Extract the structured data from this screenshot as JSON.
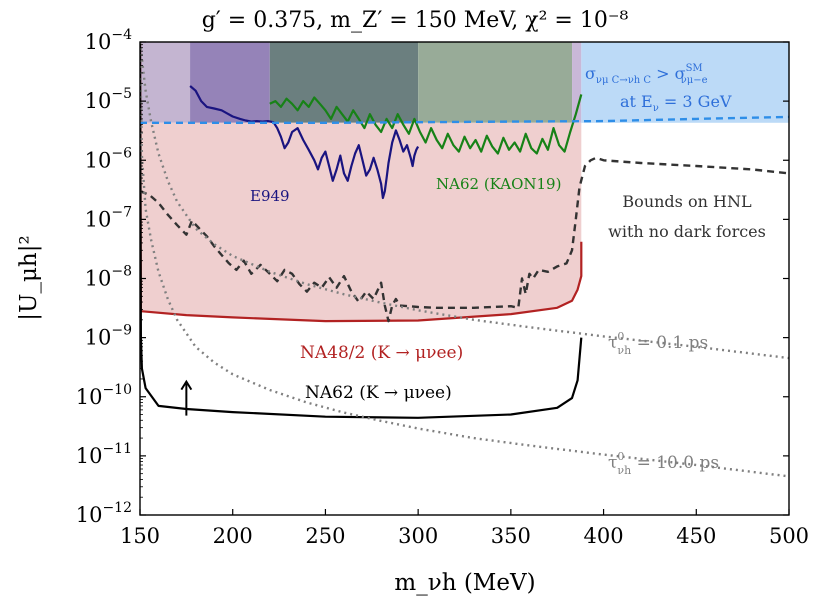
{
  "chart_data": {
    "type": "line",
    "title": "g′ = 0.375,    m_Z′ = 150 MeV,    χ² = 10⁻⁸",
    "xlabel": "m_νh (MeV)",
    "ylabel": "|U_μh|²",
    "xscale": "linear",
    "yscale": "log",
    "xlim": [
      150,
      500
    ],
    "ylim": [
      1e-12,
      0.0001
    ],
    "xticks": [
      150,
      200,
      250,
      300,
      350,
      400,
      450,
      500
    ],
    "yticks": [
      {
        "value": 1e-12,
        "base": "10",
        "exp": "−12"
      },
      {
        "value": 1e-11,
        "base": "10",
        "exp": "−11"
      },
      {
        "value": 1e-10,
        "base": "10",
        "exp": "−10"
      },
      {
        "value": 1e-09,
        "base": "10",
        "exp": "−9"
      },
      {
        "value": 1e-08,
        "base": "10",
        "exp": "−8"
      },
      {
        "value": 1e-07,
        "base": "10",
        "exp": "−7"
      },
      {
        "value": 1e-06,
        "base": "10",
        "exp": "−6"
      },
      {
        "value": 1e-05,
        "base": "10",
        "exp": "−5"
      },
      {
        "value": 0.0001,
        "base": "10",
        "exp": "−4"
      }
    ],
    "shaded_regions": [
      {
        "name": "band-lavender",
        "x": [
          150,
          177
        ],
        "color": "#c4b5d1"
      },
      {
        "name": "band-purple",
        "x": [
          177,
          220
        ],
        "color": "#9583b8"
      },
      {
        "name": "band-slate",
        "x": [
          220,
          300
        ],
        "color": "#6b7f7f"
      },
      {
        "name": "band-sage",
        "x": [
          300,
          383
        ],
        "color": "#98ab98"
      },
      {
        "name": "band-lilac",
        "x": [
          383,
          388
        ],
        "color": "#c9b8d8"
      },
      {
        "name": "band-sky",
        "x": [
          388,
          500
        ],
        "color": "#bcdaf7"
      }
    ],
    "series": [
      {
        "name": "NA48/2 (K → μνee)",
        "color": "#b22222",
        "style": "solid",
        "fill": "#efcfcf",
        "x": [
          150,
          150.5,
          175,
          200,
          250,
          300,
          350,
          375,
          383,
          386,
          388,
          388
        ],
        "y": [
          0.0001,
          2.8e-09,
          2.4e-09,
          2.2e-09,
          1.9e-09,
          1.95e-09,
          2.5e-09,
          3.2e-09,
          4.2e-09,
          6.5e-09,
          1.1e-08,
          4.2e-08
        ]
      },
      {
        "name": "NA62 (K → μνee)",
        "color": "#000000",
        "style": "solid",
        "x": [
          150,
          150.5,
          151,
          153,
          160,
          175,
          200,
          250,
          300,
          350,
          375,
          383,
          386,
          388
        ],
        "y": [
          0.0001,
          1e-09,
          3e-10,
          1.4e-10,
          7e-11,
          6.2e-11,
          5.5e-11,
          4.6e-11,
          4.4e-11,
          5e-11,
          6.5e-11,
          9.5e-11,
          1.9e-10,
          1e-09
        ]
      },
      {
        "name": "E949",
        "color": "#1a1480",
        "style": "solid",
        "x": [
          177,
          180,
          183,
          186,
          190,
          194,
          197,
          200,
          204,
          207,
          210,
          213,
          216,
          219,
          222,
          224,
          226,
          228,
          230,
          232,
          235,
          238,
          241,
          244,
          246,
          248,
          250,
          252,
          254,
          256,
          258,
          260,
          262,
          264,
          266,
          268,
          270,
          272,
          274,
          276,
          278,
          280,
          281,
          282,
          283,
          284,
          286,
          288,
          290,
          292,
          294,
          296,
          297,
          298,
          299,
          300
        ],
        "y": [
          1.8e-05,
          1.5e-05,
          1e-05,
          8e-06,
          7.5e-06,
          7e-06,
          6.2e-06,
          5.5e-06,
          5e-06,
          4.7e-06,
          4.5e-06,
          4.6e-06,
          4.5e-06,
          4.6e-06,
          4.4e-06,
          3.5e-06,
          2.5e-06,
          1.6e-06,
          2e-06,
          3e-06,
          3.5e-06,
          2.2e-06,
          1.5e-06,
          1e-06,
          7e-07,
          1.1e-06,
          1.4e-06,
          8e-07,
          4.5e-07,
          7e-07,
          1.2e-06,
          6e-07,
          4.5e-07,
          8e-07,
          1.3e-06,
          1.8e-06,
          1e-06,
          5.5e-07,
          7e-07,
          1.1e-06,
          7e-07,
          4e-07,
          2.3e-07,
          3e-07,
          5e-07,
          9e-07,
          2e-06,
          3.2e-06,
          2.2e-06,
          1.4e-06,
          1.8e-06,
          1.1e-06,
          8e-07,
          1.2e-06,
          1.5e-06,
          1.7e-06
        ]
      },
      {
        "name": "NA62 (KAON19)",
        "color": "#178217",
        "style": "solid",
        "x": [
          220,
          223,
          226,
          229,
          232,
          235,
          238,
          241,
          244,
          247,
          250,
          253,
          256,
          259,
          262,
          265,
          268,
          271,
          274,
          277,
          280,
          283,
          286,
          289,
          292,
          295,
          298,
          301,
          304,
          307,
          310,
          313,
          316,
          319,
          322,
          325,
          328,
          331,
          334,
          337,
          340,
          343,
          346,
          349,
          352,
          355,
          358,
          361,
          364,
          367,
          370,
          373,
          376,
          379,
          382,
          385,
          388
        ],
        "y": [
          9e-06,
          1e-05,
          8e-06,
          1.1e-05,
          9e-06,
          7e-06,
          1e-05,
          8e-06,
          1.15e-05,
          9e-06,
          7e-06,
          5e-06,
          8e-06,
          6e-06,
          4.5e-06,
          7e-06,
          5e-06,
          3.5e-06,
          6e-06,
          4e-06,
          3e-06,
          5e-06,
          3.5e-06,
          6e-06,
          4e-06,
          2.8e-06,
          5e-06,
          3e-06,
          2e-06,
          3.5e-06,
          2.2e-06,
          1.6e-06,
          2.8e-06,
          1.8e-06,
          1.4e-06,
          2.5e-06,
          1.6e-06,
          2.2e-06,
          1.4e-06,
          2.6e-06,
          1.7e-06,
          1.3e-06,
          2.4e-06,
          1.5e-06,
          2e-06,
          1.4e-06,
          2.8e-06,
          1.6e-06,
          1.3e-06,
          2.3e-06,
          1.5e-06,
          3.5e-06,
          1.8e-06,
          1.4e-06,
          3e-06,
          6e-06,
          1.3e-05
        ]
      },
      {
        "name": "σ boundary (E_ν = 3 GeV)",
        "color": "#2e8ee8",
        "style": "dashed",
        "x": [
          150,
          200,
          250,
          300,
          350,
          400,
          450,
          500
        ],
        "y": [
          4.3e-06,
          4.3e-06,
          4.3e-06,
          4.4e-06,
          4.5e-06,
          4.6e-06,
          5e-06,
          5.4e-06
        ]
      },
      {
        "name": "Bounds on HNL with no dark forces",
        "color": "#333333",
        "style": "dashed",
        "x": [
          150,
          155,
          160,
          165,
          170,
          175,
          178,
          182,
          186,
          190,
          194,
          198,
          202,
          206,
          210,
          215,
          220,
          224,
          228,
          232,
          236,
          240,
          244,
          248,
          252,
          256,
          260,
          264,
          268,
          272,
          276,
          280,
          282,
          284,
          286,
          288,
          290,
          295,
          300,
          310,
          320,
          330,
          340,
          350,
          354,
          356,
          358,
          360,
          362,
          365,
          370,
          375,
          380,
          383,
          385,
          387,
          390,
          393,
          396,
          400,
          420,
          450,
          480,
          500
        ],
        "y": [
          3e-07,
          2.6e-07,
          1.9e-07,
          1.2e-07,
          8e-08,
          5.5e-08,
          9.5e-08,
          7e-08,
          5.2e-08,
          3.5e-08,
          2.5e-08,
          1.8e-08,
          1.4e-08,
          2e-08,
          1.2e-08,
          1.7e-08,
          1.2e-08,
          9e-09,
          1.4e-08,
          1.2e-08,
          8e-09,
          6e-09,
          8.5e-09,
          7e-09,
          1.05e-08,
          7e-09,
          1.1e-08,
          6e-09,
          4e-09,
          6e-09,
          4.5e-09,
          8.5e-09,
          3.5e-09,
          1.9e-09,
          3.5e-09,
          4.5e-09,
          3.5e-09,
          3.4e-09,
          3.3e-09,
          3.2e-09,
          3.2e-09,
          3.2e-09,
          3.3e-09,
          3.4e-09,
          3.2e-09,
          1e-08,
          5.5e-09,
          1.2e-08,
          1e-08,
          1.4e-08,
          1.3e-08,
          1.6e-08,
          1.8e-08,
          3e-08,
          1e-07,
          3.5e-07,
          8e-07,
          1e-06,
          1.1e-06,
          1e-06,
          9e-07,
          8e-07,
          7e-07,
          6e-07
        ]
      },
      {
        "name": "τ = 0.1 ps",
        "color": "#808080",
        "style": "dotted",
        "x": [
          150,
          153,
          156,
          160,
          165,
          170,
          180,
          190,
          200,
          220,
          240,
          260,
          280,
          300,
          330,
          360,
          400,
          450,
          500
        ],
        "y": [
          0.0001,
          1.5e-05,
          4.5e-06,
          1.3e-06,
          4.5e-07,
          2e-07,
          7e-08,
          3.8e-08,
          2.4e-08,
          1.3e-08,
          8e-09,
          5.4e-09,
          3.9e-09,
          2.9e-09,
          2e-09,
          1.5e-09,
          1.05e-09,
          7e-10,
          4.5e-10
        ]
      },
      {
        "name": "τ = 10.0 ps",
        "color": "#808080",
        "style": "dotted",
        "x": [
          150,
          151,
          153,
          156,
          160,
          165,
          170,
          180,
          190,
          200,
          220,
          240,
          260,
          280,
          300,
          330,
          360,
          400,
          450,
          500
        ],
        "y": [
          0.0001,
          1.2e-06,
          1.5e-07,
          4.5e-08,
          1.3e-08,
          4.5e-09,
          2e-09,
          7e-10,
          3.8e-10,
          2.4e-10,
          1.3e-10,
          8e-11,
          5.4e-11,
          3.9e-11,
          2.9e-11,
          2e-11,
          1.5e-11,
          1.05e-11,
          7e-12,
          4.5e-12
        ]
      }
    ],
    "arrow": {
      "x": 175,
      "y_from": 4.8e-11,
      "y_to": 1.8e-10
    },
    "annotations": {
      "sigma_line1_main": "σ",
      "sigma_line1_sub1": "νμ C→νh C",
      "sigma_line1_gt": " > σ",
      "sigma_line1_sup": "SM",
      "sigma_line1_sub2": "νμ−e",
      "sigma_line2": "at E",
      "sigma_line2_sub": "ν",
      "sigma_line2_tail": " = 3 GeV",
      "e949": "E949",
      "na62_kaon": "NA62 (KAON19)",
      "hnl_line1": "Bounds on HNL",
      "hnl_line2": "with no dark forces",
      "na48": "NA48/2 (K → μνee)",
      "na62_knuee": "NA62 (K → μνee)",
      "tau_main": "τ",
      "tau_sup": "0",
      "tau_sub": "νh",
      "tau01_val": " = 0.1 ps",
      "tau10_val": " = 10.0 ps"
    }
  }
}
